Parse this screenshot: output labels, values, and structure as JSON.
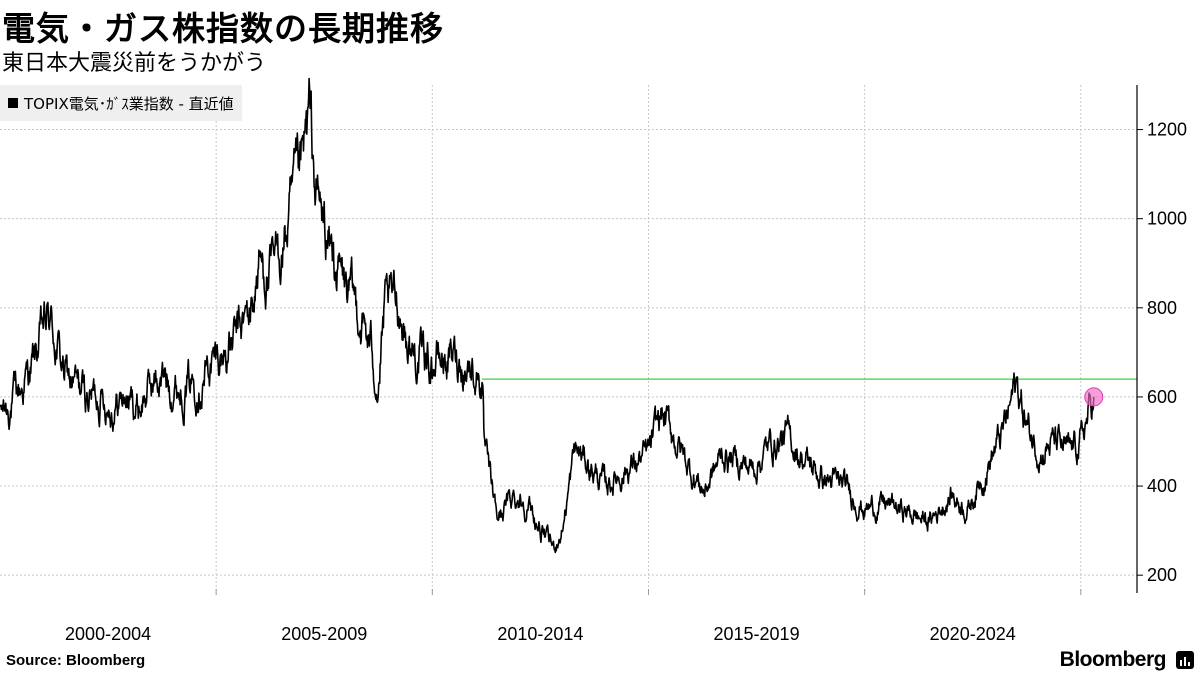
{
  "header": {
    "title": "電気・ガス株指数の長期推移",
    "subtitle": "東日本大震災前をうかがう"
  },
  "footer": {
    "source": "Source:  Bloomberg",
    "brand": "Bloomberg"
  },
  "chart_data": {
    "type": "line",
    "title": "電気・ガス株指数の長期推移",
    "subtitle": "東日本大震災前をうかがう",
    "xlabel": "",
    "ylabel": "",
    "legend": {
      "position": "top-left",
      "entries": [
        "TOPIX電気･ｶﾞｽ業指数 - 直近値"
      ]
    },
    "grid": true,
    "x_period_labels": [
      "2000-2004",
      "2005-2009",
      "2010-2014",
      "2015-2019",
      "2020-2024"
    ],
    "x_range": [
      2000.0,
      2026.3
    ],
    "ylim": [
      160,
      1300
    ],
    "y_ticks": [
      200,
      400,
      600,
      800,
      1000,
      1200
    ],
    "series": [
      {
        "name": "TOPIX電気･ｶﾞｽ業指数 - 直近値",
        "color": "#000000",
        "points": [
          [
            2000.0,
            560
          ],
          [
            2000.3,
            590
          ],
          [
            2000.5,
            620
          ],
          [
            2000.8,
            680
          ],
          [
            2001.0,
            750
          ],
          [
            2001.15,
            770
          ],
          [
            2001.3,
            720
          ],
          [
            2001.5,
            650
          ],
          [
            2001.8,
            620
          ],
          [
            2002.0,
            600
          ],
          [
            2002.3,
            610
          ],
          [
            2002.6,
            580
          ],
          [
            2002.9,
            600
          ],
          [
            2003.2,
            575
          ],
          [
            2003.5,
            630
          ],
          [
            2003.8,
            640
          ],
          [
            2004.2,
            620
          ],
          [
            2004.6,
            650
          ],
          [
            2005.0,
            680
          ],
          [
            2005.4,
            720
          ],
          [
            2005.8,
            790
          ],
          [
            2006.0,
            900
          ],
          [
            2006.3,
            870
          ],
          [
            2006.6,
            960
          ],
          [
            2007.0,
            1100
          ],
          [
            2007.15,
            1220
          ],
          [
            2007.3,
            1060
          ],
          [
            2007.6,
            940
          ],
          [
            2008.0,
            840
          ],
          [
            2008.3,
            790
          ],
          [
            2008.6,
            700
          ],
          [
            2008.75,
            630
          ],
          [
            2008.9,
            780
          ],
          [
            2009.2,
            820
          ],
          [
            2009.5,
            700
          ],
          [
            2010.0,
            680
          ],
          [
            2010.5,
            690
          ],
          [
            2011.0,
            660
          ],
          [
            2011.15,
            640
          ],
          [
            2011.2,
            480
          ],
          [
            2011.5,
            330
          ],
          [
            2011.9,
            380
          ],
          [
            2012.2,
            360
          ],
          [
            2012.5,
            300
          ],
          [
            2012.8,
            260
          ],
          [
            2013.0,
            300
          ],
          [
            2013.3,
            480
          ],
          [
            2013.6,
            450
          ],
          [
            2014.0,
            400
          ],
          [
            2014.5,
            440
          ],
          [
            2015.0,
            470
          ],
          [
            2015.3,
            560
          ],
          [
            2015.6,
            510
          ],
          [
            2016.0,
            430
          ],
          [
            2016.3,
            390
          ],
          [
            2016.7,
            470
          ],
          [
            2017.0,
            460
          ],
          [
            2017.4,
            440
          ],
          [
            2017.8,
            490
          ],
          [
            2018.2,
            510
          ],
          [
            2018.6,
            460
          ],
          [
            2019.0,
            420
          ],
          [
            2019.5,
            400
          ],
          [
            2020.0,
            350
          ],
          [
            2020.5,
            360
          ],
          [
            2021.0,
            340
          ],
          [
            2021.5,
            320
          ],
          [
            2022.0,
            380
          ],
          [
            2022.4,
            350
          ],
          [
            2022.8,
            440
          ],
          [
            2023.2,
            520
          ],
          [
            2023.5,
            630
          ],
          [
            2023.8,
            520
          ],
          [
            2024.1,
            480
          ],
          [
            2024.4,
            500
          ],
          [
            2024.7,
            470
          ],
          [
            2025.0,
            500
          ],
          [
            2025.3,
            600
          ]
        ]
      },
      {
        "name": "",
        "color": "#3cd13c",
        "reference_level": 640,
        "x_start": 2011.15
      }
    ],
    "annotations": [
      {
        "type": "marker",
        "x": 2025.3,
        "y": 600,
        "color": "#f06ac8"
      }
    ]
  }
}
